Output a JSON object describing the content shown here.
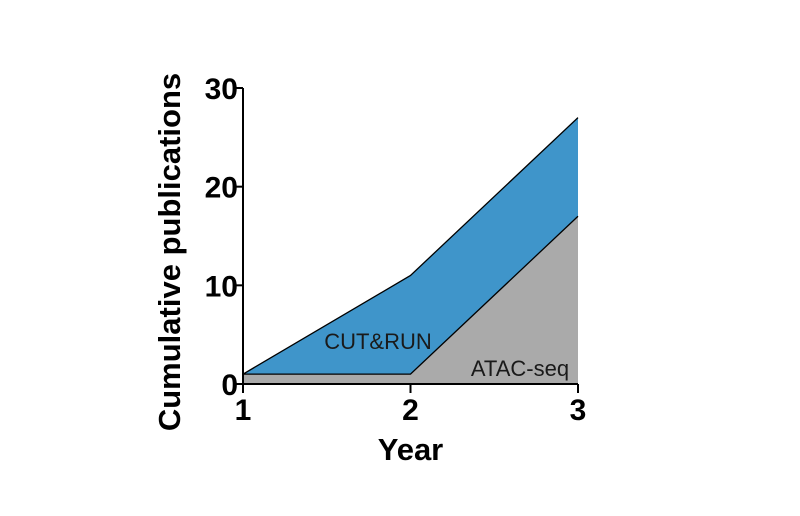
{
  "chart_data": {
    "type": "area",
    "stacked": true,
    "title": "",
    "xlabel": "Year",
    "ylabel": "Cumulative publications",
    "x": [
      1,
      2,
      3
    ],
    "xlim": [
      1,
      3
    ],
    "ylim": [
      0,
      30
    ],
    "xticks": [
      "1",
      "2",
      "3"
    ],
    "yticks": [
      "0",
      "10",
      "20",
      "30"
    ],
    "grid": false,
    "legend": "none",
    "series": [
      {
        "name": "ATAC-seq",
        "values": [
          1,
          1,
          17
        ],
        "color": "#aaaaaa"
      },
      {
        "name": "CUT&RUN",
        "values": [
          0,
          10,
          10
        ],
        "color": "#3f95ca"
      }
    ]
  }
}
